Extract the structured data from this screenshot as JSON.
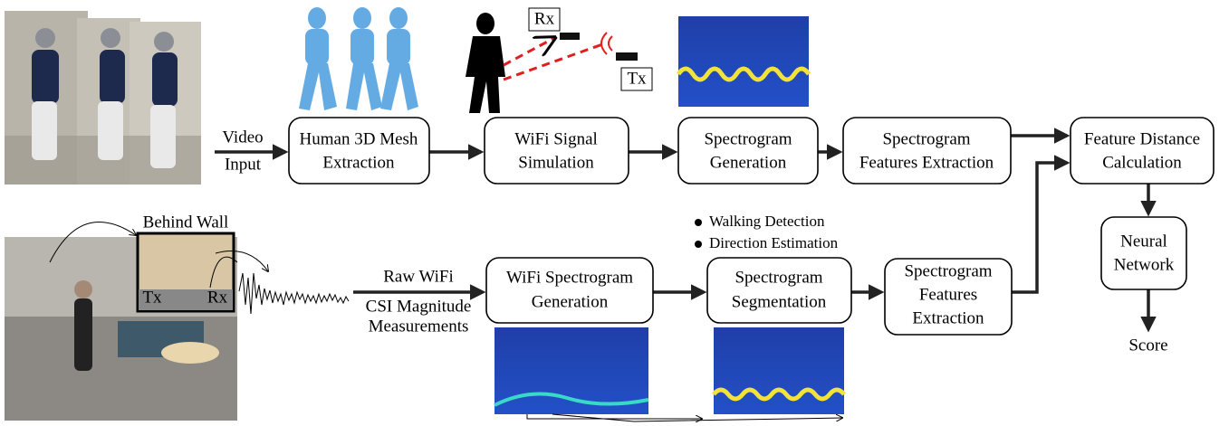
{
  "nodes": [
    {
      "lines": [
        "Human 3D Mesh",
        "Extraction"
      ]
    },
    {
      "lines": [
        "WiFi Signal",
        "Simulation"
      ]
    },
    {
      "lines": [
        "Spectrogram",
        "Generation"
      ]
    },
    {
      "lines": [
        "Spectrogram",
        "Features Extraction"
      ]
    },
    {
      "lines": [
        "Feature Distance",
        "Calculation"
      ]
    },
    {
      "lines": [
        "Neural",
        "Network"
      ]
    },
    {
      "lines": [
        "WiFi Spectrogram",
        "Generation"
      ]
    },
    {
      "lines": [
        "Spectrogram",
        "Segmentation"
      ]
    },
    {
      "lines": [
        "Spectrogram",
        "Features",
        "Extraction"
      ]
    }
  ],
  "edge_labels": [
    {
      "lines": [
        "Video",
        "Input"
      ]
    },
    {
      "lines": [
        "Raw WiFi",
        "CSI Magnitude",
        "Measurements"
      ]
    }
  ],
  "output": "Score",
  "photo_labels": [
    "Behind Wall",
    "Tx",
    "Rx"
  ],
  "simulation_labels": [
    "Rx",
    "Tx"
  ],
  "bullets": [
    "Walking Detection",
    "Direction Estimation"
  ]
}
